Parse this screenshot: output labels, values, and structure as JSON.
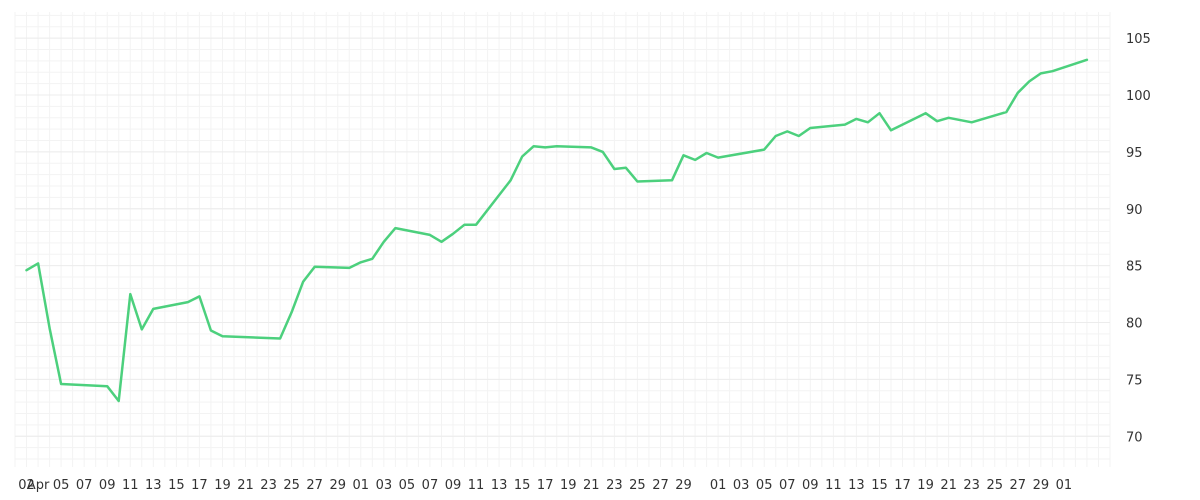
{
  "chart_data": {
    "type": "line",
    "series": [
      {
        "color": "#4cd07d",
        "points": [
          [
            "2024-04-01",
            84.6
          ],
          [
            "2024-04-02",
            85.2
          ],
          [
            "2024-04-03",
            79.5
          ],
          [
            "2024-04-04",
            74.6
          ],
          [
            "2024-04-08",
            74.4
          ],
          [
            "2024-04-09",
            73.1
          ],
          [
            "2024-04-10",
            82.5
          ],
          [
            "2024-04-11",
            79.4
          ],
          [
            "2024-04-12",
            81.2
          ],
          [
            "2024-04-15",
            81.8
          ],
          [
            "2024-04-16",
            82.3
          ],
          [
            "2024-04-17",
            79.3
          ],
          [
            "2024-04-18",
            78.8
          ],
          [
            "2024-04-23",
            78.6
          ],
          [
            "2024-04-24",
            80.9
          ],
          [
            "2024-04-25",
            83.6
          ],
          [
            "2024-04-26",
            84.9
          ],
          [
            "2024-04-29",
            84.8
          ],
          [
            "2024-04-30",
            85.3
          ],
          [
            "2024-05-01",
            85.6
          ],
          [
            "2024-05-02",
            87.1
          ],
          [
            "2024-05-03",
            88.3
          ],
          [
            "2024-05-06",
            87.7
          ],
          [
            "2024-05-07",
            87.1
          ],
          [
            "2024-05-08",
            87.8
          ],
          [
            "2024-05-09",
            88.6
          ],
          [
            "2024-05-10",
            88.6
          ],
          [
            "2024-05-13",
            92.5
          ],
          [
            "2024-05-14",
            94.6
          ],
          [
            "2024-05-15",
            95.5
          ],
          [
            "2024-05-16",
            95.4
          ],
          [
            "2024-05-17",
            95.5
          ],
          [
            "2024-05-20",
            95.4
          ],
          [
            "2024-05-21",
            95.0
          ],
          [
            "2024-05-22",
            93.5
          ],
          [
            "2024-05-23",
            93.6
          ],
          [
            "2024-05-24",
            92.4
          ],
          [
            "2024-05-27",
            92.5
          ],
          [
            "2024-05-28",
            94.7
          ],
          [
            "2024-05-29",
            94.3
          ],
          [
            "2024-05-30",
            94.9
          ],
          [
            "2024-05-31",
            94.5
          ],
          [
            "2024-06-04",
            95.2
          ],
          [
            "2024-06-05",
            96.4
          ],
          [
            "2024-06-06",
            96.8
          ],
          [
            "2024-06-07",
            96.4
          ],
          [
            "2024-06-08",
            97.1
          ],
          [
            "2024-06-11",
            97.4
          ],
          [
            "2024-06-12",
            97.9
          ],
          [
            "2024-06-13",
            97.6
          ],
          [
            "2024-06-14",
            98.4
          ],
          [
            "2024-06-15",
            96.9
          ],
          [
            "2024-06-18",
            98.4
          ],
          [
            "2024-06-19",
            97.7
          ],
          [
            "2024-06-20",
            98.0
          ],
          [
            "2024-06-22",
            97.6
          ],
          [
            "2024-06-25",
            98.5
          ],
          [
            "2024-06-26",
            100.2
          ],
          [
            "2024-06-27",
            101.2
          ],
          [
            "2024-06-28",
            101.9
          ],
          [
            "2024-06-29",
            102.1
          ],
          [
            "2024-07-02",
            103.1
          ]
        ]
      }
    ],
    "x_range": [
      "2024-03-31",
      "2024-07-04"
    ],
    "ylim": [
      67.3,
      107.3
    ],
    "y_ticks": [
      70,
      75,
      80,
      85,
      90,
      95,
      100,
      105
    ],
    "y_tick_labels": [
      "70",
      "75",
      "80",
      "85",
      "90",
      "95",
      "100",
      "105"
    ],
    "x_ticks": [
      {
        "date": "2024-04-01",
        "label": "02"
      },
      {
        "date": "2024-04-02",
        "label": "Apr"
      },
      {
        "date": "2024-04-04",
        "label": "05"
      },
      {
        "date": "2024-04-06",
        "label": "07"
      },
      {
        "date": "2024-04-08",
        "label": "09"
      },
      {
        "date": "2024-04-10",
        "label": "11"
      },
      {
        "date": "2024-04-12",
        "label": "13"
      },
      {
        "date": "2024-04-14",
        "label": "15"
      },
      {
        "date": "2024-04-16",
        "label": "17"
      },
      {
        "date": "2024-04-18",
        "label": "19"
      },
      {
        "date": "2024-04-20",
        "label": "21"
      },
      {
        "date": "2024-04-22",
        "label": "23"
      },
      {
        "date": "2024-04-24",
        "label": "25"
      },
      {
        "date": "2024-04-26",
        "label": "27"
      },
      {
        "date": "2024-04-28",
        "label": "29"
      },
      {
        "date": "2024-04-30",
        "label": "01"
      },
      {
        "date": "2024-05-02",
        "label": "03"
      },
      {
        "date": "2024-05-04",
        "label": "05"
      },
      {
        "date": "2024-05-06",
        "label": "07"
      },
      {
        "date": "2024-05-08",
        "label": "09"
      },
      {
        "date": "2024-05-10",
        "label": "11"
      },
      {
        "date": "2024-05-12",
        "label": "13"
      },
      {
        "date": "2024-05-14",
        "label": "15"
      },
      {
        "date": "2024-05-16",
        "label": "17"
      },
      {
        "date": "2024-05-18",
        "label": "19"
      },
      {
        "date": "2024-05-20",
        "label": "21"
      },
      {
        "date": "2024-05-22",
        "label": "23"
      },
      {
        "date": "2024-05-24",
        "label": "25"
      },
      {
        "date": "2024-05-26",
        "label": "27"
      },
      {
        "date": "2024-05-28",
        "label": "29"
      },
      {
        "date": "2024-05-31",
        "label": "01"
      },
      {
        "date": "2024-06-02",
        "label": "03"
      },
      {
        "date": "2024-06-04",
        "label": "05"
      },
      {
        "date": "2024-06-06",
        "label": "07"
      },
      {
        "date": "2024-06-08",
        "label": "09"
      },
      {
        "date": "2024-06-10",
        "label": "11"
      },
      {
        "date": "2024-06-12",
        "label": "13"
      },
      {
        "date": "2024-06-14",
        "label": "15"
      },
      {
        "date": "2024-06-16",
        "label": "17"
      },
      {
        "date": "2024-06-18",
        "label": "19"
      },
      {
        "date": "2024-06-20",
        "label": "21"
      },
      {
        "date": "2024-06-22",
        "label": "23"
      },
      {
        "date": "2024-06-24",
        "label": "25"
      },
      {
        "date": "2024-06-26",
        "label": "27"
      },
      {
        "date": "2024-06-28",
        "label": "29"
      },
      {
        "date": "2024-06-30",
        "label": "01"
      }
    ],
    "grid": true,
    "legend": "none",
    "y_axis_side": "right"
  }
}
